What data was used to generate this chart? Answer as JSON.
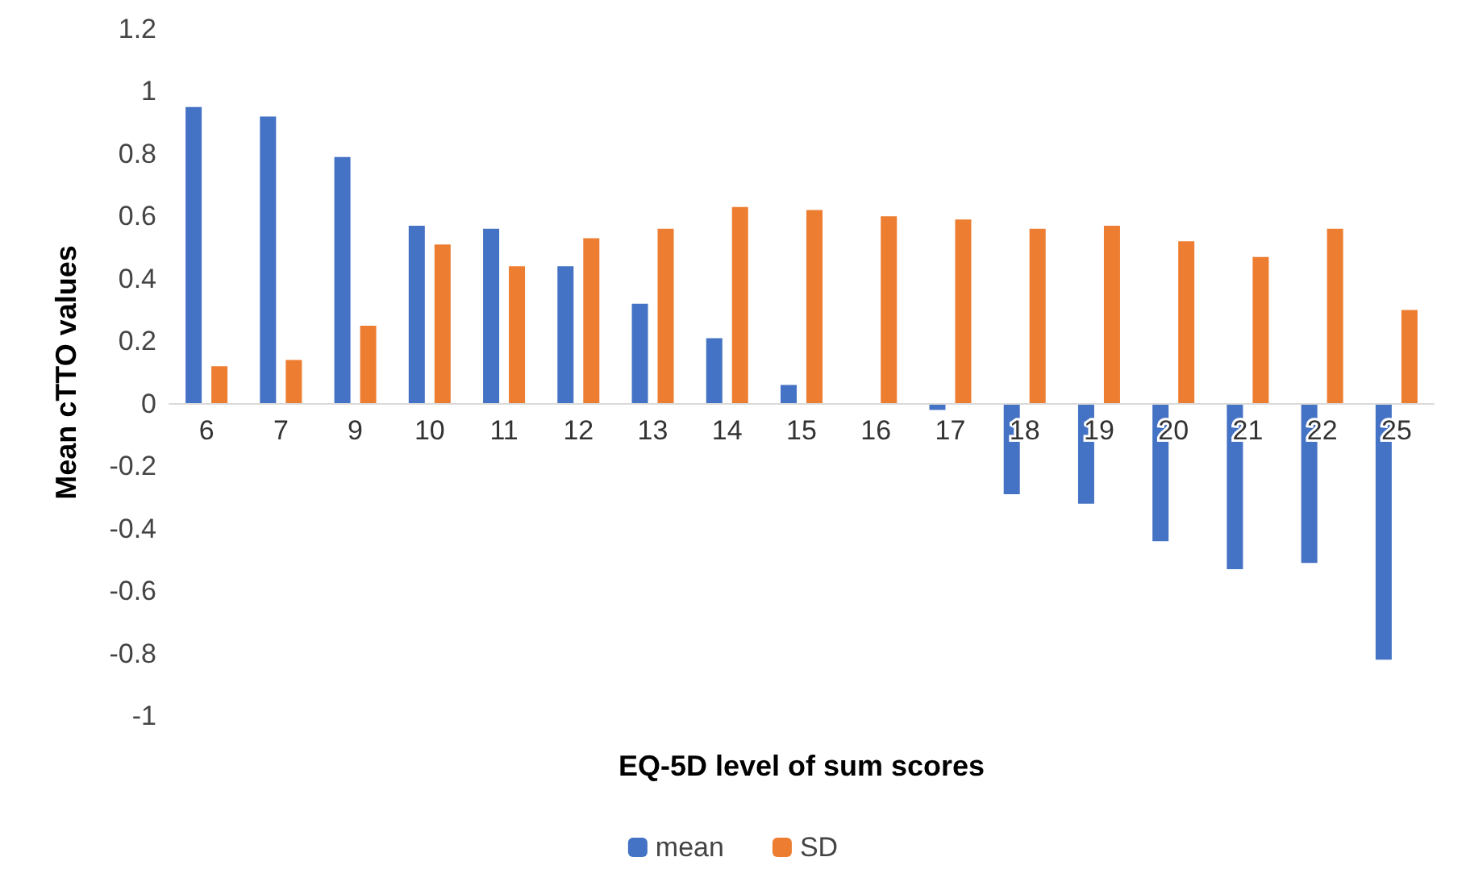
{
  "chart_data": {
    "type": "bar",
    "xlabel": "EQ-5D level of sum scores",
    "ylabel": "Mean cTTO values",
    "categories": [
      "6",
      "7",
      "9",
      "10",
      "11",
      "12",
      "13",
      "14",
      "15",
      "16",
      "17",
      "18",
      "19",
      "20",
      "21",
      "22",
      "25"
    ],
    "series": [
      {
        "name": "mean",
        "color": "#4472c4",
        "values": [
          0.95,
          0.92,
          0.79,
          0.57,
          0.56,
          0.44,
          0.32,
          0.21,
          0.06,
          null,
          -0.02,
          -0.29,
          -0.32,
          -0.44,
          -0.53,
          -0.51,
          -0.82
        ]
      },
      {
        "name": "SD",
        "color": "#ed7d31",
        "values": [
          0.12,
          0.14,
          0.25,
          0.51,
          0.44,
          0.53,
          0.56,
          0.63,
          0.62,
          0.6,
          0.59,
          0.56,
          0.57,
          0.52,
          0.47,
          0.56,
          0.3
        ]
      }
    ],
    "ylim": [
      -1,
      1.2
    ],
    "yticks": [
      -1,
      -0.8,
      -0.6,
      -0.4,
      -0.2,
      0,
      0.2,
      0.4,
      0.6,
      0.8,
      1,
      1.2
    ],
    "grid": false,
    "legend": "bottom"
  }
}
